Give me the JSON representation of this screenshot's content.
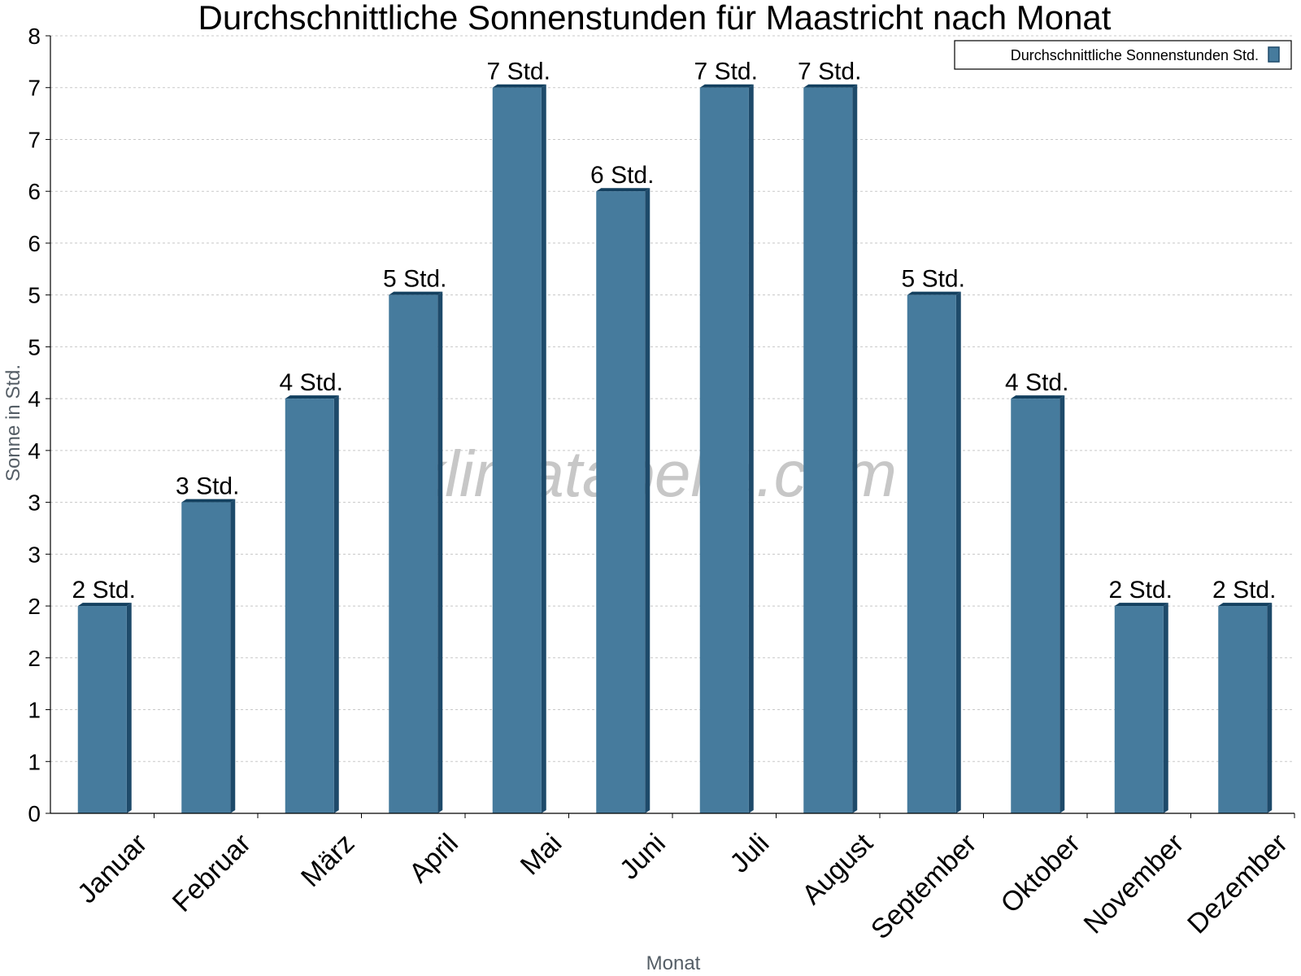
{
  "chart_data": {
    "type": "bar",
    "title": "Durchschnittliche Sonnenstunden für Maastricht nach Monat",
    "xlabel": "Monat",
    "ylabel": "Sonne in Std.",
    "categories": [
      "Januar",
      "Februar",
      "März",
      "April",
      "Mai",
      "Juni",
      "Juli",
      "August",
      "September",
      "Oktober",
      "November",
      "Dezember"
    ],
    "series": [
      {
        "name": "Durchschnittliche Sonnenstunden Std.",
        "values": [
          2,
          3,
          4,
          5,
          7,
          6,
          7,
          7,
          5,
          4,
          2,
          2
        ],
        "labels": [
          "2 Std.",
          "3 Std.",
          "4 Std.",
          "5 Std.",
          "7 Std.",
          "6 Std.",
          "7 Std.",
          "7 Std.",
          "5 Std.",
          "4 Std.",
          "2 Std.",
          "2 Std."
        ]
      }
    ],
    "ylim": [
      0,
      7.5
    ],
    "ytick_values": [
      0,
      0.5,
      1,
      1.5,
      2,
      2.5,
      3,
      3.5,
      4,
      4.5,
      5,
      5.5,
      6,
      6.5,
      7,
      7.5
    ],
    "ytick_labels": [
      "0",
      "1",
      "1",
      "2",
      "2",
      "3",
      "3",
      "4",
      "4",
      "5",
      "5",
      "6",
      "6",
      "7",
      "7",
      "8"
    ],
    "grid": true,
    "legend_position": "top-right",
    "colors": {
      "bar": "#467b9d",
      "bar_side": "#1e4a6a",
      "bar_top": "#13405f",
      "grid": "#c8c8c8"
    }
  },
  "watermark": "klimatabelle.com"
}
